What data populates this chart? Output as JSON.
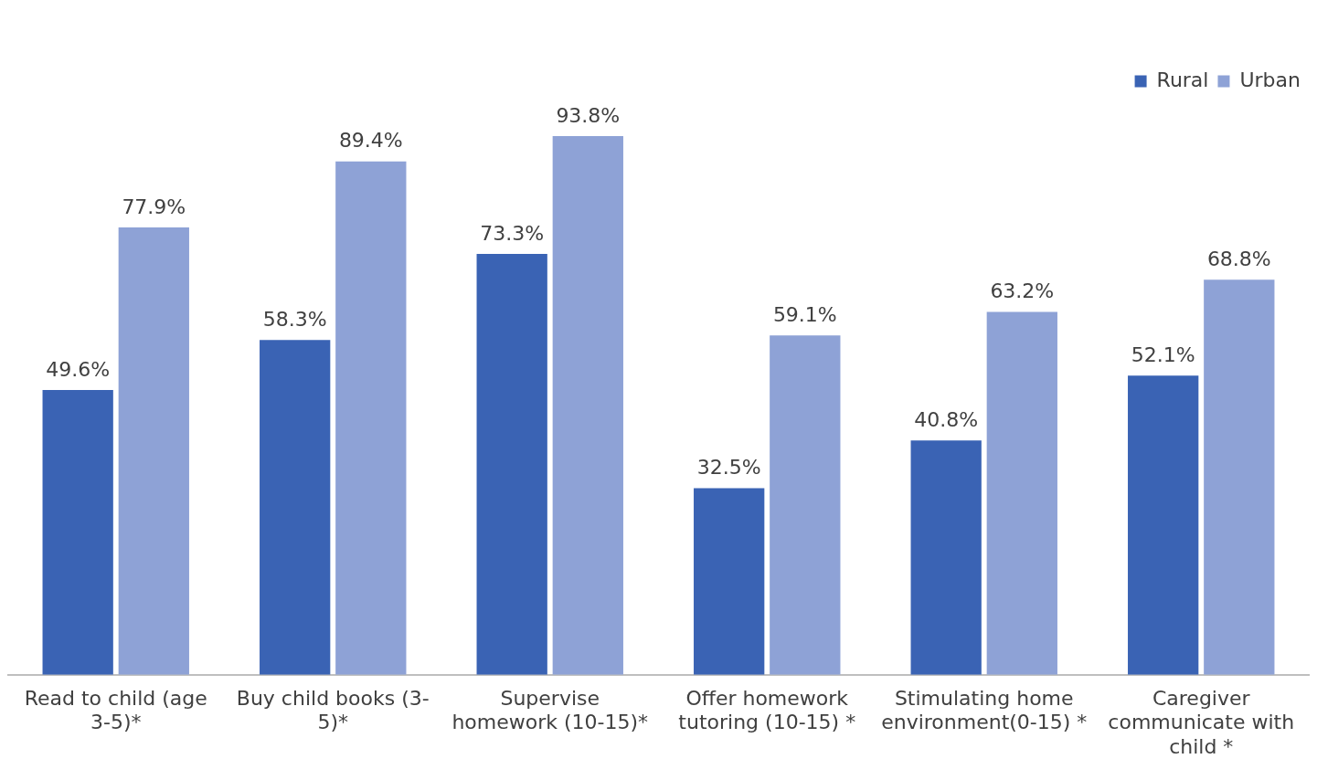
{
  "chart_data": {
    "type": "bar",
    "categories": [
      "Read to child (age 3-5)*",
      "Buy child books (3-5)*",
      "Supervise homework (10-15)*",
      "Offer homework tutoring (10-15) *",
      "Stimulating home environment(0-15) *",
      "Caregiver communicate with child *"
    ],
    "series": [
      {
        "name": "Rural",
        "color": "#3a63b4",
        "values": [
          49.6,
          58.3,
          73.3,
          32.5,
          40.8,
          52.1
        ],
        "value_labels": [
          "49.6%",
          "58.3%",
          "73.3%",
          "32.5%",
          "40.8%",
          "52.1%"
        ]
      },
      {
        "name": "Urban",
        "color": "#8ea2d6",
        "values": [
          77.9,
          89.4,
          93.8,
          59.1,
          63.2,
          68.8
        ],
        "value_labels": [
          "77.9%",
          "89.4%",
          "93.8%",
          "59.1%",
          "63.2%",
          "68.8%"
        ]
      }
    ],
    "legend": "top right",
    "grid": false,
    "tick_labels": "x"
  }
}
